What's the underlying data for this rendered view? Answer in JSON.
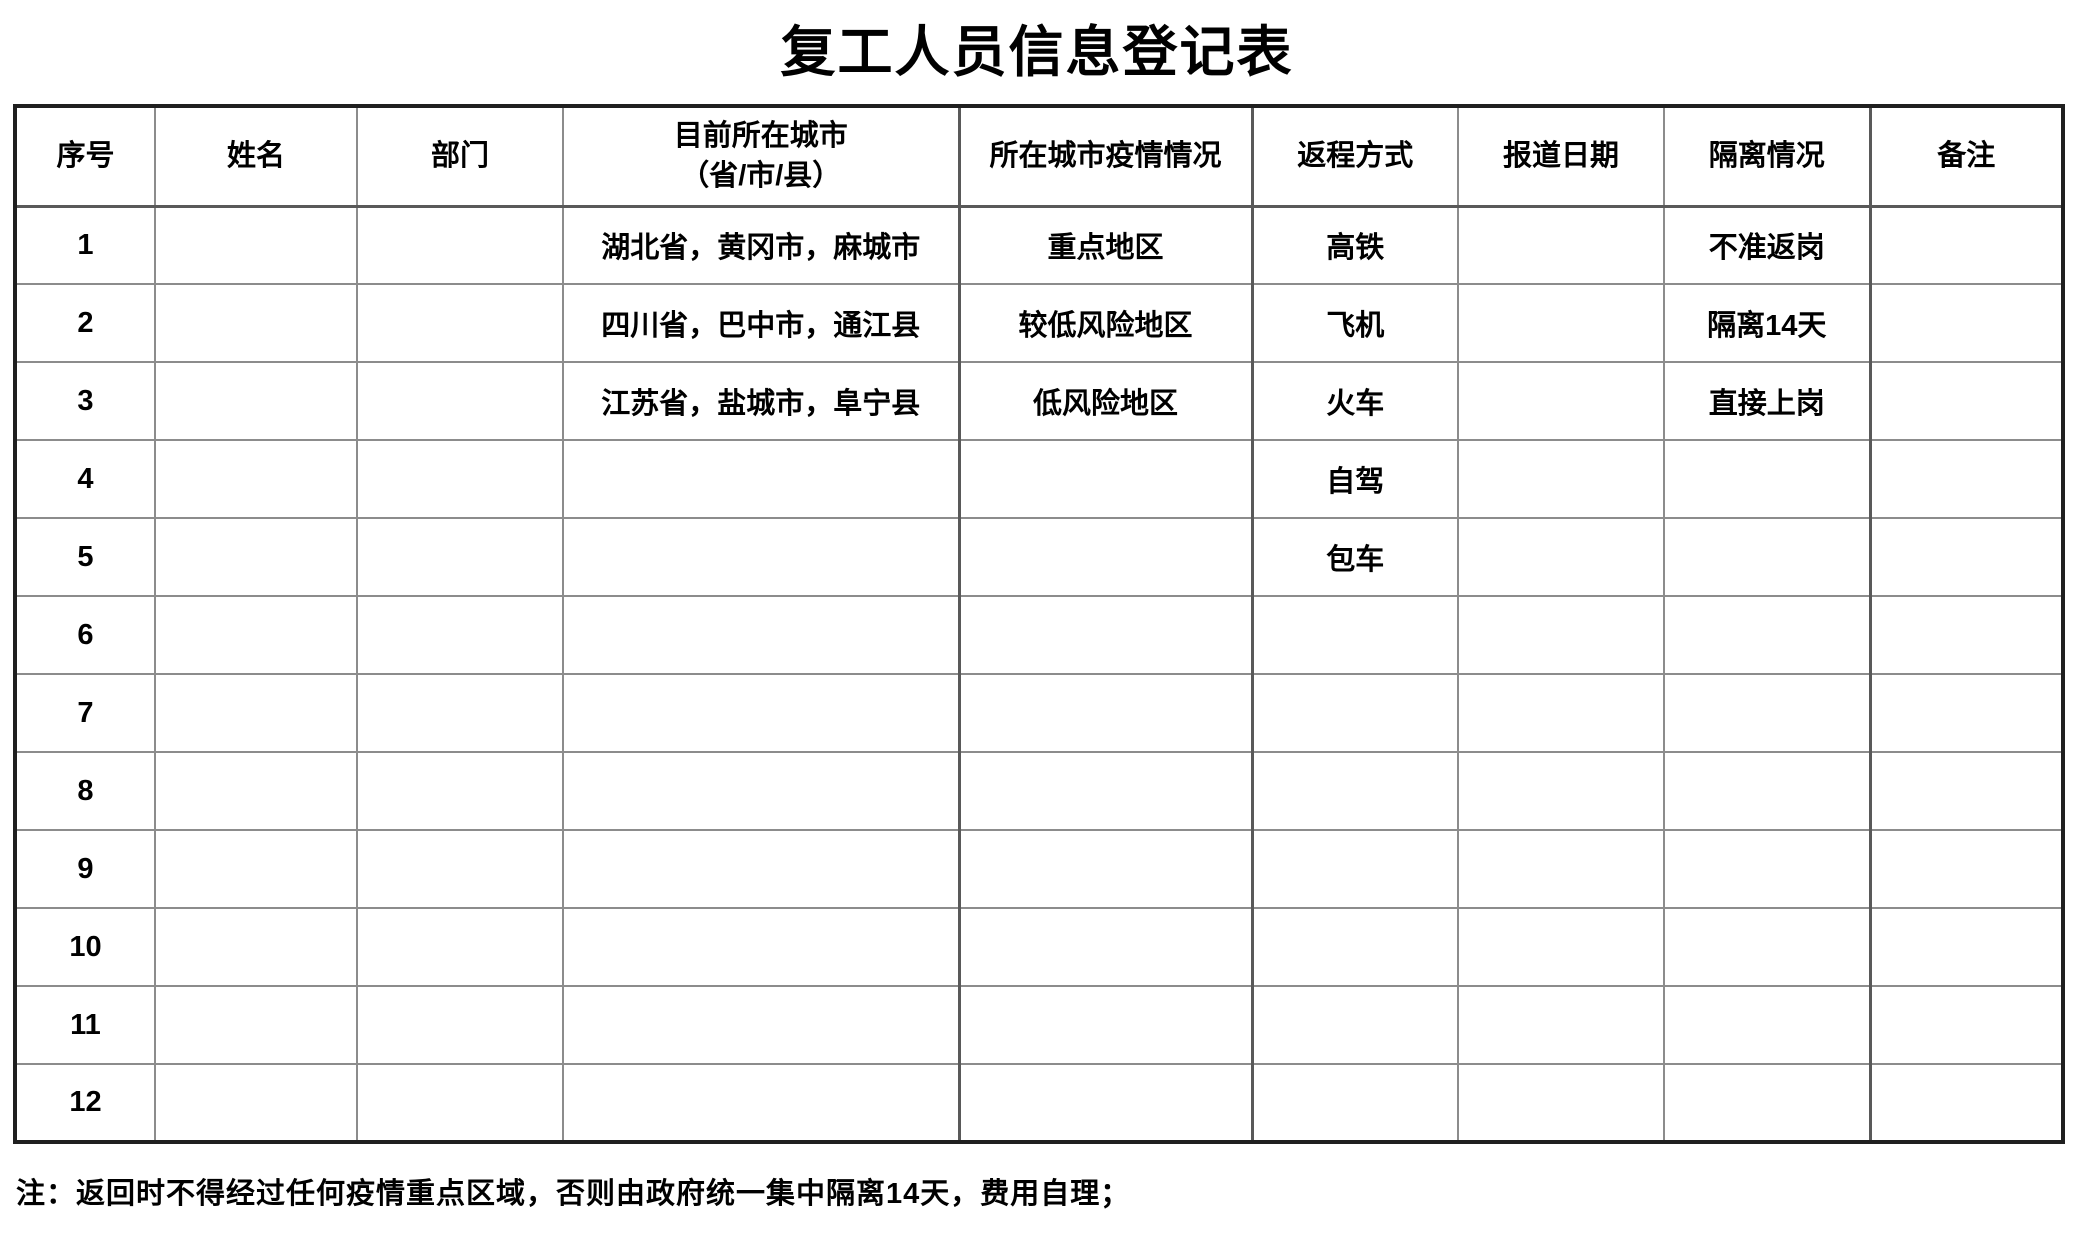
{
  "title": "复工人员信息登记表",
  "table": {
    "columns": [
      {
        "key": "no",
        "label": "序号"
      },
      {
        "key": "name",
        "label": "姓名"
      },
      {
        "key": "dept",
        "label": "部门"
      },
      {
        "key": "city",
        "label": "目前所在城市",
        "label2": "（省/市/县）"
      },
      {
        "key": "risk",
        "label": "所在城市疫情情况"
      },
      {
        "key": "transport",
        "label": "返程方式"
      },
      {
        "key": "report_date",
        "label": "报道日期"
      },
      {
        "key": "quarantine",
        "label": "隔离情况"
      },
      {
        "key": "remark",
        "label": "备注"
      }
    ],
    "rows": [
      {
        "no": "1",
        "name": "",
        "dept": "",
        "city": "湖北省，黄冈市，麻城市",
        "risk": "重点地区",
        "transport": "高铁",
        "report_date": "",
        "quarantine": "不准返岗",
        "remark": ""
      },
      {
        "no": "2",
        "name": "",
        "dept": "",
        "city": "四川省，巴中市，通江县",
        "risk": "较低风险地区",
        "transport": "飞机",
        "report_date": "",
        "quarantine": "隔离14天",
        "remark": ""
      },
      {
        "no": "3",
        "name": "",
        "dept": "",
        "city": "江苏省，盐城市，阜宁县",
        "risk": "低风险地区",
        "transport": "火车",
        "report_date": "",
        "quarantine": "直接上岗",
        "remark": ""
      },
      {
        "no": "4",
        "name": "",
        "dept": "",
        "city": "",
        "risk": "",
        "transport": "自驾",
        "report_date": "",
        "quarantine": "",
        "remark": ""
      },
      {
        "no": "5",
        "name": "",
        "dept": "",
        "city": "",
        "risk": "",
        "transport": "包车",
        "report_date": "",
        "quarantine": "",
        "remark": ""
      },
      {
        "no": "6",
        "name": "",
        "dept": "",
        "city": "",
        "risk": "",
        "transport": "",
        "report_date": "",
        "quarantine": "",
        "remark": ""
      },
      {
        "no": "7",
        "name": "",
        "dept": "",
        "city": "",
        "risk": "",
        "transport": "",
        "report_date": "",
        "quarantine": "",
        "remark": ""
      },
      {
        "no": "8",
        "name": "",
        "dept": "",
        "city": "",
        "risk": "",
        "transport": "",
        "report_date": "",
        "quarantine": "",
        "remark": ""
      },
      {
        "no": "9",
        "name": "",
        "dept": "",
        "city": "",
        "risk": "",
        "transport": "",
        "report_date": "",
        "quarantine": "",
        "remark": ""
      },
      {
        "no": "10",
        "name": "",
        "dept": "",
        "city": "",
        "risk": "",
        "transport": "",
        "report_date": "",
        "quarantine": "",
        "remark": ""
      },
      {
        "no": "11",
        "name": "",
        "dept": "",
        "city": "",
        "risk": "",
        "transport": "",
        "report_date": "",
        "quarantine": "",
        "remark": ""
      },
      {
        "no": "12",
        "name": "",
        "dept": "",
        "city": "",
        "risk": "",
        "transport": "",
        "report_date": "",
        "quarantine": "",
        "remark": ""
      }
    ]
  },
  "footnote": "注：返回时不得经过任何疫情重点区域，否则由政府统一集中隔离14天，费用自理；",
  "colors": {
    "grid_line": "#8c8c8c",
    "outer_border": "#1f1f1f",
    "text": "#000000"
  }
}
